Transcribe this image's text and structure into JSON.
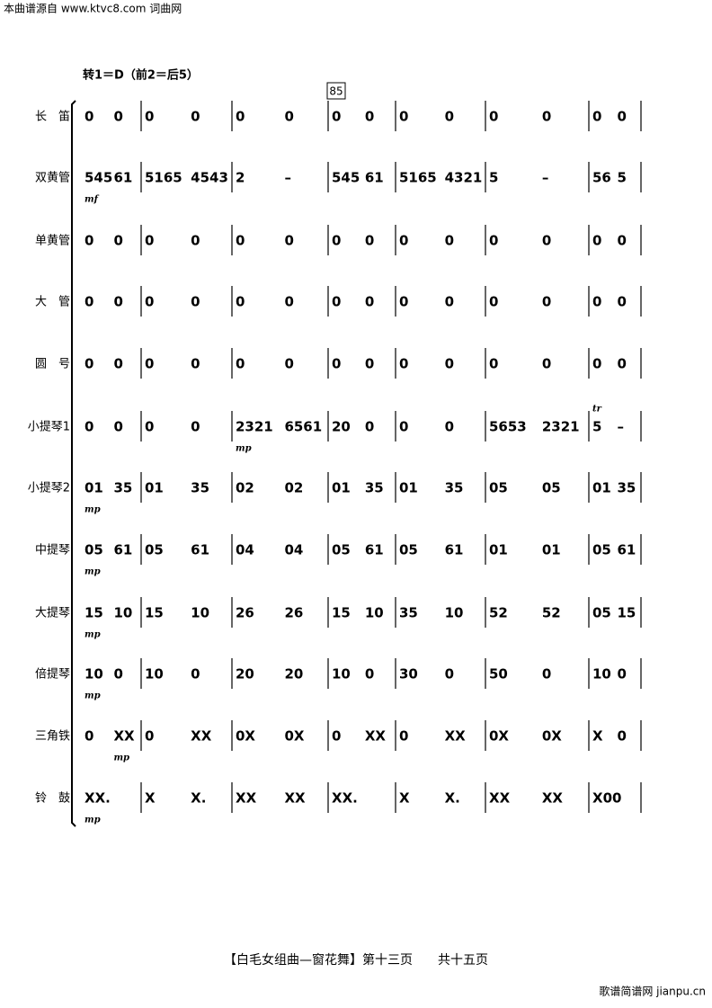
{
  "header": {
    "source": "本曲谱源自 www.ktvc8.com 词曲网",
    "key": "转1＝D（前2＝后5）",
    "rehearsal": "85"
  },
  "rows": [
    {
      "name": "长　笛",
      "measures": [
        [
          "0",
          "0"
        ],
        [
          "0",
          "0"
        ],
        [
          "0",
          "0"
        ],
        [
          "0",
          "0"
        ],
        [
          "0",
          "0"
        ],
        [
          "0",
          "0"
        ],
        [
          "0",
          "0"
        ]
      ]
    },
    {
      "name": "双黄管",
      "measures": [
        [
          "545",
          "61"
        ],
        [
          "5165",
          "4543"
        ],
        [
          "2",
          "–"
        ],
        [
          "545",
          "61"
        ],
        [
          "5165",
          "4321"
        ],
        [
          "5",
          "–"
        ],
        [
          "56",
          "5"
        ]
      ],
      "dynamic": "mf"
    },
    {
      "name": "单黄管",
      "measures": [
        [
          "0",
          "0"
        ],
        [
          "0",
          "0"
        ],
        [
          "0",
          "0"
        ],
        [
          "0",
          "0"
        ],
        [
          "0",
          "0"
        ],
        [
          "0",
          "0"
        ],
        [
          "0",
          "0"
        ]
      ]
    },
    {
      "name": "大　管",
      "measures": [
        [
          "0",
          "0"
        ],
        [
          "0",
          "0"
        ],
        [
          "0",
          "0"
        ],
        [
          "0",
          "0"
        ],
        [
          "0",
          "0"
        ],
        [
          "0",
          "0"
        ],
        [
          "0",
          "0"
        ]
      ]
    },
    {
      "name": "圆　号",
      "measures": [
        [
          "0",
          "0"
        ],
        [
          "0",
          "0"
        ],
        [
          "0",
          "0"
        ],
        [
          "0",
          "0"
        ],
        [
          "0",
          "0"
        ],
        [
          "0",
          "0"
        ],
        [
          "0",
          "0"
        ]
      ]
    },
    {
      "name": "小提琴1",
      "measures": [
        [
          "0",
          "0"
        ],
        [
          "0",
          "0"
        ],
        [
          "2321",
          "6561"
        ],
        [
          "20",
          "0"
        ],
        [
          "0",
          "0"
        ],
        [
          "5653",
          "2321"
        ],
        [
          "5",
          "–"
        ]
      ],
      "dynamic": "mp",
      "ornament": "tr"
    },
    {
      "name": "小提琴2",
      "measures": [
        [
          "01",
          "35"
        ],
        [
          "01",
          "35"
        ],
        [
          "02",
          "02"
        ],
        [
          "01",
          "35"
        ],
        [
          "01",
          "35"
        ],
        [
          "05",
          "05"
        ],
        [
          "01",
          "35"
        ]
      ],
      "dynamic": "mp"
    },
    {
      "name": "中提琴",
      "measures": [
        [
          "05",
          "61"
        ],
        [
          "05",
          "61"
        ],
        [
          "04",
          "04"
        ],
        [
          "05",
          "61"
        ],
        [
          "05",
          "61"
        ],
        [
          "01",
          "01"
        ],
        [
          "05",
          "61"
        ]
      ],
      "dynamic": "mp"
    },
    {
      "name": "大提琴",
      "measures": [
        [
          "15",
          "10"
        ],
        [
          "15",
          "10"
        ],
        [
          "26",
          "26"
        ],
        [
          "15",
          "10"
        ],
        [
          "35",
          "10"
        ],
        [
          "52",
          "52"
        ],
        [
          "05",
          "15"
        ]
      ],
      "dynamic": "mp"
    },
    {
      "name": "倍提琴",
      "measures": [
        [
          "10",
          "0"
        ],
        [
          "10",
          "0"
        ],
        [
          "20",
          "20"
        ],
        [
          "10",
          "0"
        ],
        [
          "30",
          "0"
        ],
        [
          "50",
          "0"
        ],
        [
          "10",
          "0"
        ]
      ],
      "dynamic": "mp"
    },
    {
      "name": "三角铁",
      "measures": [
        [
          "0",
          "XX"
        ],
        [
          "0",
          "XX"
        ],
        [
          "0X",
          "0X"
        ],
        [
          "0",
          "XX"
        ],
        [
          "0",
          "XX"
        ],
        [
          "0X",
          "0X"
        ],
        [
          "X",
          "0"
        ]
      ],
      "dynamic": "mp"
    },
    {
      "name": "铃　鼓",
      "measures": [
        [
          "XX.",
          ""
        ],
        [
          "X",
          "X."
        ],
        [
          "XX",
          "XX"
        ],
        [
          "XX.",
          ""
        ],
        [
          "X",
          "X."
        ],
        [
          "XX",
          "XX"
        ],
        [
          "X00",
          ""
        ]
      ],
      "dynamic": "mp"
    }
  ],
  "footer": {
    "title": "【白毛女组曲—窗花舞】第十三页　　共十五页",
    "watermark": "歌谱简谱网 jianpu.cn"
  }
}
